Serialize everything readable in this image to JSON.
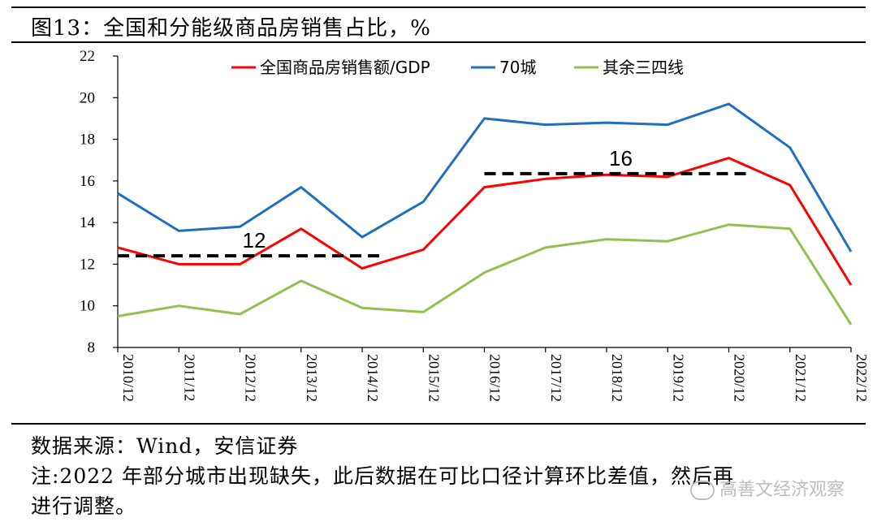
{
  "figure": {
    "title": "图13：全国和分能级商品房销售占比，%"
  },
  "footer": {
    "source": "数据来源：Wind，安信证券",
    "note_line1": "注:2022 年部分城市出现缺失，此后数据在可比口径计算环比差值，然后再",
    "note_line2": "进行调整。"
  },
  "watermark": {
    "text": "高善文经济观察",
    "icon": "wechat-icon"
  },
  "chart_data": {
    "type": "line",
    "categories": [
      "2010/12",
      "2011/12",
      "2012/12",
      "2013/12",
      "2014/12",
      "2015/12",
      "2016/12",
      "2017/12",
      "2018/12",
      "2019/12",
      "2020/12",
      "2021/12",
      "2022/12"
    ],
    "series": [
      {
        "name": "全国商品房销售额/GDP",
        "color": "#ff0000",
        "values": [
          12.8,
          12.0,
          12.0,
          13.7,
          11.8,
          12.7,
          15.7,
          16.1,
          16.3,
          16.2,
          17.1,
          15.8,
          11.0
        ]
      },
      {
        "name": "70城",
        "color": "#1f6fc0",
        "values": [
          15.4,
          13.6,
          13.8,
          15.7,
          13.3,
          15.0,
          19.0,
          18.7,
          18.8,
          18.7,
          19.7,
          17.6,
          12.6
        ]
      },
      {
        "name": "其余三四线",
        "color": "#92c050",
        "values": [
          9.5,
          10.0,
          9.6,
          11.2,
          9.9,
          9.7,
          11.6,
          12.8,
          13.2,
          13.1,
          13.9,
          13.7,
          9.1
        ]
      }
    ],
    "reference_lines": [
      {
        "value": 12.4,
        "label": "12",
        "from": "2010/12",
        "to": "2014/12"
      },
      {
        "value": 16.35,
        "label": "16",
        "from": "2016/12",
        "to": "2020/12"
      }
    ],
    "ylim": [
      8,
      22
    ],
    "yticks": [
      "8",
      "10",
      "12",
      "14",
      "16",
      "18",
      "20",
      "22"
    ],
    "grid": false,
    "legend_position": "top"
  }
}
